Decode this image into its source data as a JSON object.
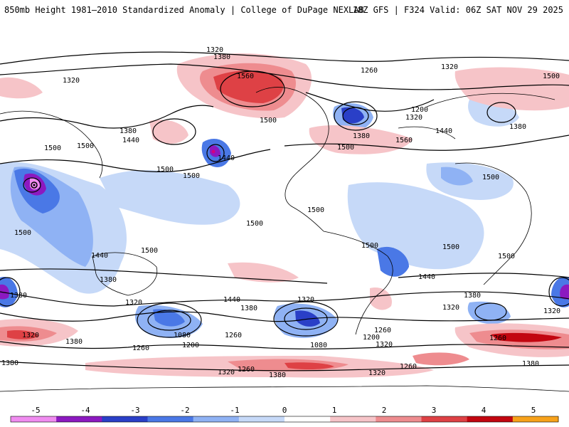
{
  "header": {
    "left_title": "850mb Height 1981–2010 Standardized Anomaly | College of DuPage NEXLAB",
    "right_title": "18Z GFS | F324 Valid: 06Z SAT NOV 29 2025"
  },
  "colors": {
    "ocean_bg": "#ffffff",
    "anom_pos1": "#f6c4c8",
    "anom_pos2": "#ee8c8f",
    "anom_pos3": "#de4145",
    "anom_pos4": "#c20610",
    "anom_neg1": "#c6d9f8",
    "anom_neg2": "#8fb2f4",
    "anom_neg3": "#4a78e6",
    "anom_neg4": "#2a3fc7",
    "anom_neg5": "#8c19c0",
    "contour": "#000000"
  },
  "contour_labels": [
    {
      "text": "1320"
    },
    {
      "text": "1380"
    },
    {
      "text": "1320"
    },
    {
      "text": "1560"
    },
    {
      "text": "1260"
    },
    {
      "text": "1320"
    },
    {
      "text": "1500"
    },
    {
      "text": "1380"
    },
    {
      "text": "1440"
    },
    {
      "text": "1500"
    },
    {
      "text": "1200"
    },
    {
      "text": "1320"
    },
    {
      "text": "1380"
    },
    {
      "text": "1440"
    },
    {
      "text": "1500"
    },
    {
      "text": "1500"
    },
    {
      "text": "1500"
    },
    {
      "text": "1560"
    },
    {
      "text": "1440"
    },
    {
      "text": "1380"
    },
    {
      "text": "1500"
    },
    {
      "text": "1500"
    },
    {
      "text": "1500"
    },
    {
      "text": "1500"
    },
    {
      "text": "1500"
    },
    {
      "text": "1500"
    },
    {
      "text": "1500"
    },
    {
      "text": "1440"
    },
    {
      "text": "1500"
    },
    {
      "text": "1500"
    },
    {
      "text": "1380"
    },
    {
      "text": "1440"
    },
    {
      "text": "1500"
    },
    {
      "text": "1320"
    },
    {
      "text": "1380"
    },
    {
      "text": "1440"
    },
    {
      "text": "1320"
    },
    {
      "text": "1380"
    },
    {
      "text": "1320"
    },
    {
      "text": "1260"
    },
    {
      "text": "1080"
    },
    {
      "text": "1200"
    },
    {
      "text": "1260"
    },
    {
      "text": "1080"
    },
    {
      "text": "1200"
    },
    {
      "text": "1260"
    },
    {
      "text": "1320"
    },
    {
      "text": "1260"
    },
    {
      "text": "1380"
    },
    {
      "text": "1320"
    },
    {
      "text": "1260"
    },
    {
      "text": "1320"
    },
    {
      "text": "1380"
    },
    {
      "text": "1380"
    },
    {
      "text": "1260"
    },
    {
      "text": "1380"
    },
    {
      "text": "1380"
    },
    {
      "text": "1320"
    },
    {
      "text": "1320"
    }
  ],
  "colorbar": {
    "ticks": [
      "-5",
      "-4",
      "-3",
      "-2",
      "-1",
      "0",
      "1",
      "2",
      "3",
      "4",
      "5"
    ],
    "swatches": [
      "#f08cf0",
      "#8c19c0",
      "#2a3fc7",
      "#4a78e6",
      "#8fb2f4",
      "#c6d9f8",
      "#ffffff",
      "#f6c4c8",
      "#ee8c8f",
      "#de4145",
      "#c20610",
      "#f7a21b"
    ]
  }
}
